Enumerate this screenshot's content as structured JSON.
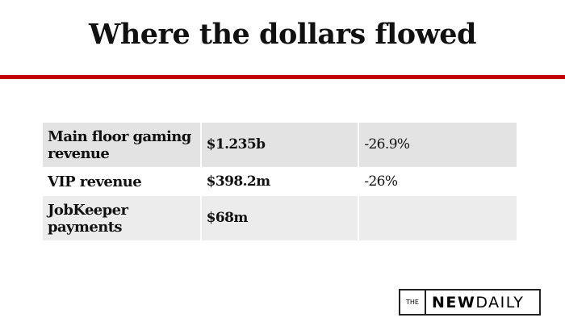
{
  "title": "Where the dollars flowed",
  "table": {
    "rows": [
      {
        "label": "Main floor gaming revenue",
        "amount": "$1.235b",
        "change": "-26.9%"
      },
      {
        "label": "VIP revenue",
        "amount": "$398.2m",
        "change": "-26%"
      },
      {
        "label": "JobKeeper payments",
        "amount": "$68m",
        "change": ""
      }
    ]
  },
  "logo": {
    "the": "THE",
    "new": "NEW",
    "daily": "DAILY"
  },
  "colors": {
    "accent": "#c00000"
  }
}
